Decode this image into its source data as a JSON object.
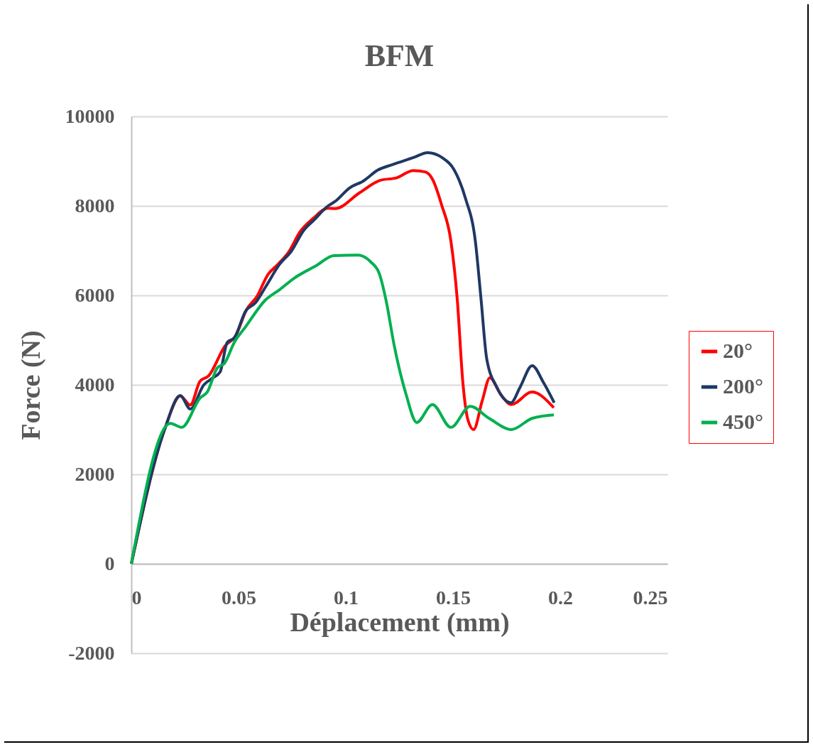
{
  "chart_data": {
    "type": "line",
    "title": "BFM",
    "xlabel": "Déplacement (mm)",
    "ylabel": "Force (N)",
    "xlim": [
      0,
      0.25
    ],
    "xticks": [
      0,
      0.05,
      0.1,
      0.15,
      0.2,
      0.25
    ],
    "ylim": [
      -2000,
      10000
    ],
    "yticks": [
      -2000,
      0,
      2000,
      4000,
      6000,
      8000,
      10000
    ],
    "grid": "y",
    "legend": "right",
    "marker": "none",
    "line_style": "solid",
    "series": [
      {
        "name": "20°",
        "color": "#ff0000",
        "x": [
          0,
          0.0156,
          0.0228,
          0.0275,
          0.032,
          0.036,
          0.0437,
          0.0487,
          0.0536,
          0.0586,
          0.0636,
          0.0685,
          0.0735,
          0.0785,
          0.085,
          0.0917,
          0.095,
          0.1063,
          0.1159,
          0.1238,
          0.1315,
          0.1371,
          0.1404,
          0.1447,
          0.149,
          0.152,
          0.1546,
          0.157,
          0.1596,
          0.1636,
          0.1672,
          0.1722,
          0.1772,
          0.1868,
          0.197
        ],
        "values": [
          0,
          3016,
          3750,
          3550,
          4080,
          4200,
          4870,
          5100,
          5670,
          5980,
          6460,
          6700,
          6980,
          7410,
          7730,
          7950,
          7940,
          8290,
          8570,
          8630,
          8790,
          8760,
          8600,
          8020,
          7220,
          5900,
          4050,
          3210,
          3000,
          3640,
          4160,
          3790,
          3560,
          3840,
          3490
        ]
      },
      {
        "name": "200°",
        "color": "#1f3864",
        "x": [
          0,
          0.0156,
          0.0228,
          0.0275,
          0.0338,
          0.0381,
          0.0414,
          0.0447,
          0.048,
          0.0533,
          0.058,
          0.0626,
          0.0692,
          0.0745,
          0.0805,
          0.0851,
          0.0917,
          0.095,
          0.1017,
          0.1083,
          0.1149,
          0.1215,
          0.1315,
          0.1382,
          0.1449,
          0.1505,
          0.1558,
          0.1604,
          0.1631,
          0.1657,
          0.1704,
          0.177,
          0.1813,
          0.1869,
          0.1922,
          0.1972
        ],
        "values": [
          0,
          3016,
          3760,
          3460,
          4000,
          4160,
          4290,
          4950,
          5050,
          5650,
          5840,
          6190,
          6700,
          6980,
          7460,
          7680,
          8000,
          8100,
          8400,
          8560,
          8800,
          8920,
          9080,
          9190,
          9080,
          8810,
          8170,
          7220,
          5900,
          4590,
          3950,
          3600,
          3950,
          4430,
          4050,
          3600
        ]
      },
      {
        "name": "450°",
        "color": "#00b050",
        "x": [
          0,
          0.0182,
          0.0235,
          0.0321,
          0.0354,
          0.0401,
          0.0434,
          0.048,
          0.0533,
          0.0626,
          0.0692,
          0.0758,
          0.0864,
          0.0944,
          0.1056,
          0.1116,
          0.1156,
          0.1189,
          0.1225,
          0.1281,
          0.1331,
          0.1404,
          0.149,
          0.158,
          0.1669,
          0.1772,
          0.1868,
          0.197
        ],
        "values": [
          0,
          3140,
          3050,
          3710,
          3840,
          4380,
          4480,
          4950,
          5300,
          5900,
          6130,
          6380,
          6670,
          6890,
          6900,
          6750,
          6490,
          5860,
          4900,
          3790,
          3160,
          3560,
          3050,
          3520,
          3250,
          3000,
          3250,
          3330
        ]
      }
    ]
  }
}
